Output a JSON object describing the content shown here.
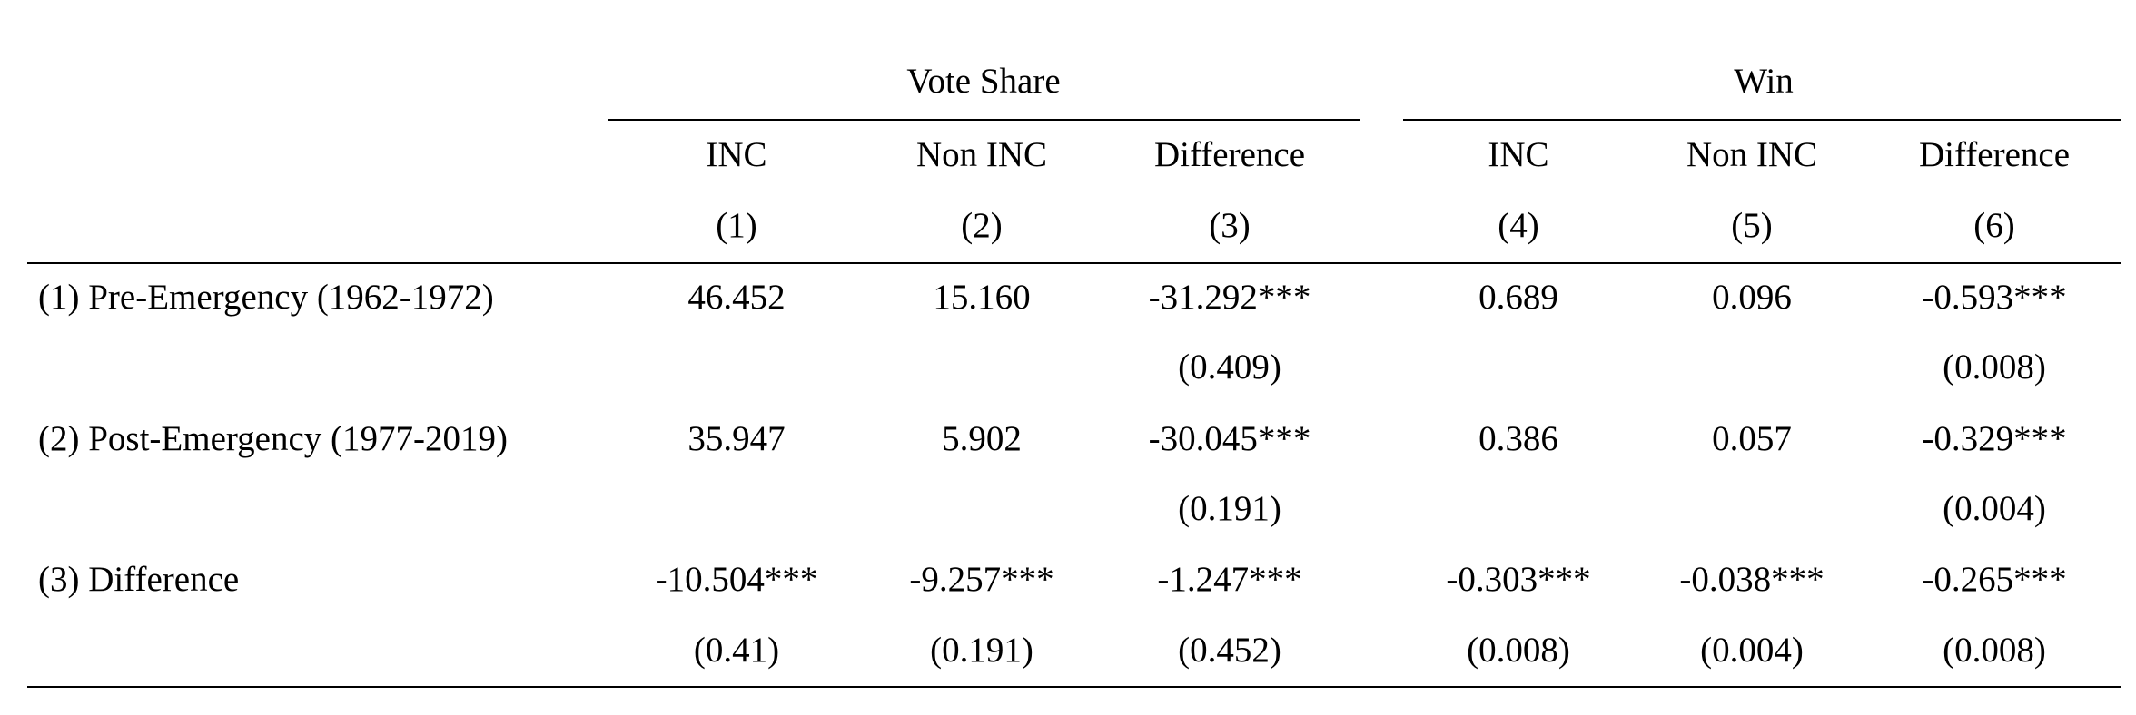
{
  "table": {
    "groups": [
      "Vote Share",
      "Win"
    ],
    "columns": [
      "INC",
      "Non INC",
      "Difference",
      "INC",
      "Non INC",
      "Difference"
    ],
    "column_numbers": [
      "(1)",
      "(2)",
      "(3)",
      "(4)",
      "(5)",
      "(6)"
    ],
    "rows": [
      {
        "label": "(1) Pre-Emergency (1962-1972)",
        "cells": [
          "46.452",
          "15.160",
          "-31.292***",
          "0.689",
          "0.096",
          "-0.593***"
        ]
      },
      {
        "cells": [
          null,
          null,
          "(0.409)",
          null,
          null,
          "(0.008)"
        ]
      },
      {
        "label": "(2) Post-Emergency (1977-2019)",
        "cells": [
          "35.947",
          "5.902",
          "-30.045***",
          "0.386",
          "0.057",
          "-0.329***"
        ]
      },
      {
        "cells": [
          null,
          null,
          "(0.191)",
          null,
          null,
          "(0.004)"
        ]
      },
      {
        "label": "(3) Difference",
        "cells": [
          "-10.504***",
          "-9.257***",
          "-1.247***",
          "-0.303***",
          "-0.038***",
          "-0.265***"
        ]
      },
      {
        "cells": [
          "(0.41)",
          "(0.191)",
          "(0.452)",
          "(0.008)",
          "(0.004)",
          "(0.008)"
        ]
      }
    ]
  }
}
